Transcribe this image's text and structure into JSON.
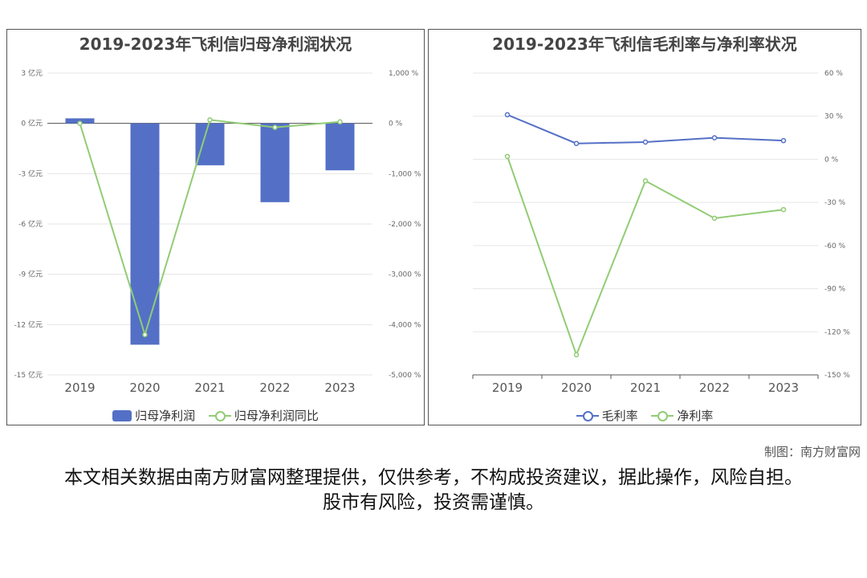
{
  "credit": "制图：南方财富网",
  "disclaimer": "本文相关数据由南方财富网整理提供，仅供参考，不构成投资建议，据此操作，风险自担。股市有风险，投资需谨慎。",
  "colors": {
    "bar": "#5470c6",
    "line_green": "#91cc75",
    "line_blue": "#5470c6"
  },
  "chart_data": [
    {
      "type": "bar",
      "title": "2019-2023年飞利信归母净利润状况",
      "categories": [
        "2019",
        "2020",
        "2021",
        "2022",
        "2023"
      ],
      "series": [
        {
          "name": "归母净利润",
          "type": "bar",
          "axis": "left",
          "values": [
            0.3,
            -13.2,
            -2.5,
            -4.7,
            -2.8
          ]
        },
        {
          "name": "归母净利润同比",
          "type": "line",
          "axis": "right",
          "values": [
            0,
            -4200,
            70,
            -80,
            30
          ]
        }
      ],
      "y_left": {
        "ticks": [
          "3 亿元",
          "0 亿元",
          "-3 亿元",
          "-6 亿元",
          "-9 亿元",
          "-12 亿元",
          "-15 亿元"
        ],
        "range": [
          -15,
          3
        ]
      },
      "y_right": {
        "ticks": [
          "1,000 %",
          "0 %",
          "-1,000 %",
          "-2,000 %",
          "-3,000 %",
          "-4,000 %",
          "-5,000 %"
        ],
        "range": [
          -5000,
          1000
        ]
      },
      "grid": true,
      "legend": "bottom"
    },
    {
      "type": "line",
      "title": "2019-2023年飞利信毛利率与净利率状况",
      "categories": [
        "2019",
        "2020",
        "2021",
        "2022",
        "2023"
      ],
      "series": [
        {
          "name": "毛利率",
          "values": [
            31,
            11,
            12,
            15,
            13
          ]
        },
        {
          "name": "净利率",
          "values": [
            2,
            -136,
            -15,
            -41,
            -35
          ]
        }
      ],
      "y_right": {
        "ticks": [
          "60 %",
          "30 %",
          "0 %",
          "-30 %",
          "-60 %",
          "-90 %",
          "-120 %",
          "-150 %"
        ],
        "range": [
          -150,
          60
        ]
      },
      "grid": true,
      "legend": "bottom"
    }
  ]
}
